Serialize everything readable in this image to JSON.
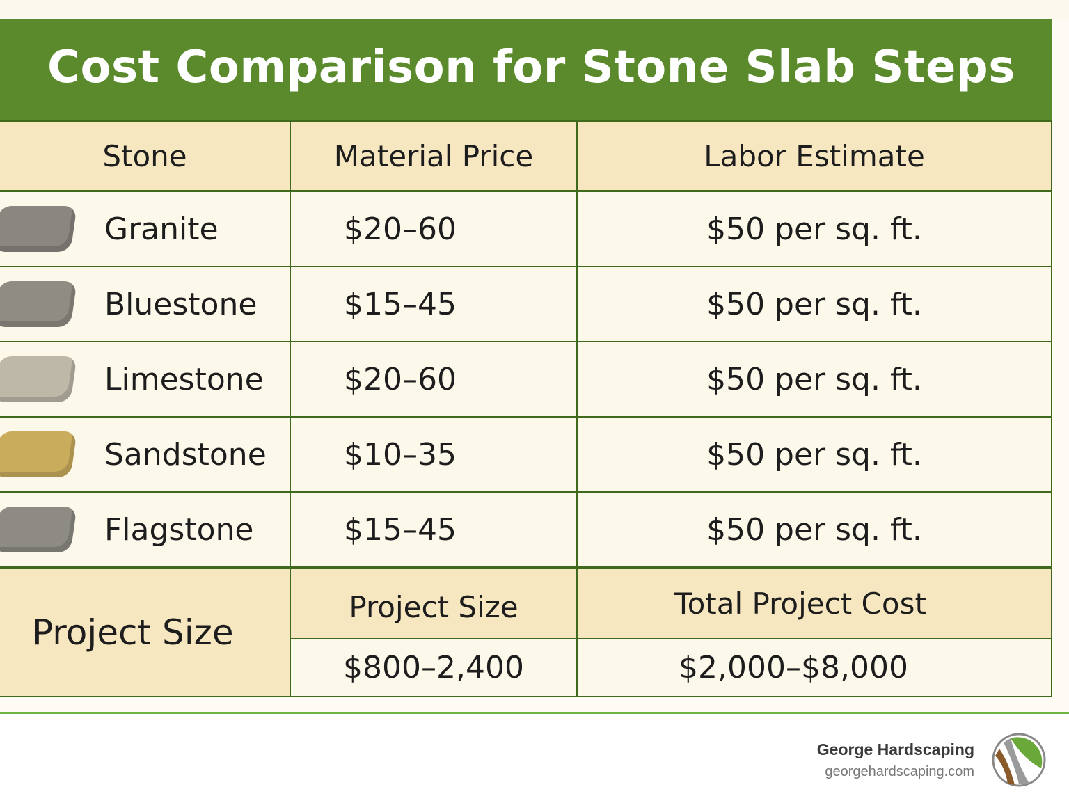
{
  "title": "Cost Comparison for Stone Slab Steps",
  "columns": [
    "Stone",
    "Material Price",
    "Labor Estimate"
  ],
  "rows": [
    {
      "stone": "Granite",
      "material": "$20–60",
      "labor": "$50 per sq. ft.",
      "color": "#8a8680"
    },
    {
      "stone": "Bluestone",
      "material": "$15–45",
      "labor": "$50 per sq. ft.",
      "color": "#8f8c84"
    },
    {
      "stone": "Limestone",
      "material": "$20–60",
      "labor": "$50 per sq. ft.",
      "color": "#bdb8a8"
    },
    {
      "stone": "Sandstone",
      "material": "$10–35",
      "labor": "$50 per sq. ft.",
      "color": "#c9ac5c"
    },
    {
      "stone": "Flagstone",
      "material": "$15–45",
      "labor": "$50 per sq. ft.",
      "color": "#8e8b84"
    }
  ],
  "summary": {
    "label": "Project Size",
    "size_header": "Project Size",
    "cost_header": "Total Project Cost",
    "size_value": "$800–2,400",
    "cost_value": "$2,000–$8,000"
  },
  "footer": {
    "brand": "George Hardscaping",
    "url": "georgehardscaping.com"
  },
  "colors": {
    "header": "#5b8a2c",
    "header_cells": "#f6e7c0",
    "rows": "#fcf8ea",
    "border": "#3f6a1c"
  }
}
